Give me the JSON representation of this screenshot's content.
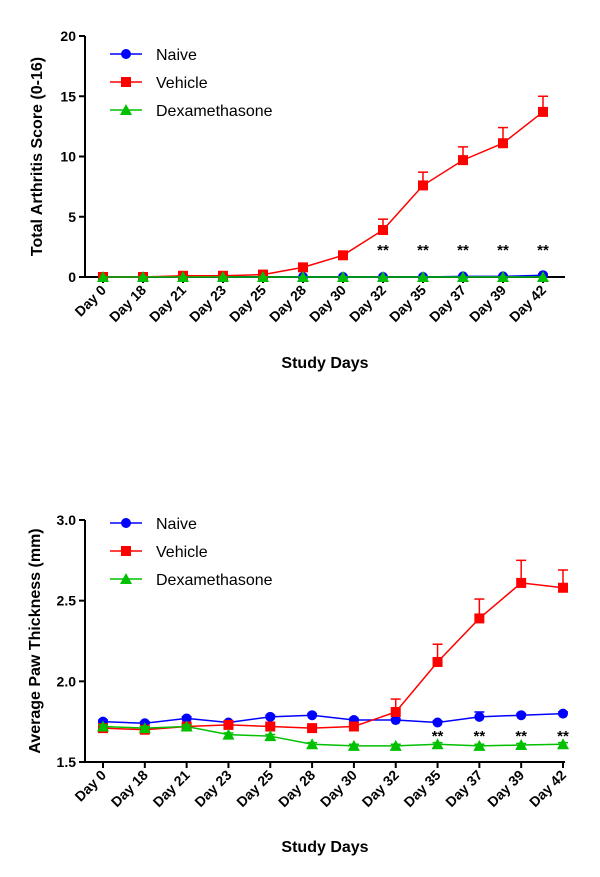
{
  "chart_data": [
    {
      "type": "line",
      "categories": [
        "Day 0",
        "Day 18",
        "Day 21",
        "Day 23",
        "Day 25",
        "Day 28",
        "Day 30",
        "Day 32",
        "Day 35",
        "Day 37",
        "Day 39",
        "Day 42"
      ],
      "xlabel": "Study Days",
      "ylabel": "Total Arthritis Score (0-16)",
      "ylim": [
        0,
        20
      ],
      "yticks": [
        "0",
        "5",
        "10",
        "15",
        "20"
      ],
      "legend_position": "top-left",
      "series": [
        {
          "name": "Naive",
          "color": "#0000ff",
          "marker": "circle",
          "values": [
            0,
            0,
            0,
            0,
            0,
            0,
            0,
            0,
            0,
            0.05,
            0.05,
            0.15
          ],
          "errors": [
            0,
            0,
            0,
            0,
            0,
            0,
            0,
            0,
            0,
            0.05,
            0.05,
            0.1
          ]
        },
        {
          "name": "Vehicle",
          "color": "#ff0000",
          "marker": "square",
          "values": [
            0,
            0,
            0.1,
            0.1,
            0.2,
            0.8,
            1.8,
            3.9,
            7.6,
            9.7,
            11.1,
            13.7
          ],
          "errors": [
            0,
            0,
            0.05,
            0.05,
            0.1,
            0.2,
            0.3,
            0.9,
            1.1,
            1.1,
            1.3,
            1.3
          ]
        },
        {
          "name": "Dexamethasone",
          "color": "#00c000",
          "marker": "triangle",
          "values": [
            0,
            0,
            0,
            0,
            0,
            0,
            0,
            0,
            0,
            0,
            0,
            0
          ],
          "errors": [
            0,
            0,
            0,
            0,
            0,
            0,
            0,
            0,
            0,
            0,
            0,
            0
          ]
        }
      ],
      "annotations": [
        {
          "category": "Day 32",
          "text": "**"
        },
        {
          "category": "Day 35",
          "text": "**"
        },
        {
          "category": "Day 37",
          "text": "**"
        },
        {
          "category": "Day 39",
          "text": "**"
        },
        {
          "category": "Day 42",
          "text": "**"
        }
      ]
    },
    {
      "type": "line",
      "categories": [
        "Day 0",
        "Day 18",
        "Day 21",
        "Day 23",
        "Day 25",
        "Day 28",
        "Day 30",
        "Day 32",
        "Day 35",
        "Day 37",
        "Day 39",
        "Day 42"
      ],
      "xlabel": "Study Days",
      "ylabel": "Average Paw Thickness (mm)",
      "ylim": [
        1.5,
        3.0
      ],
      "yticks": [
        "1.5",
        "2.0",
        "2.5",
        "3.0"
      ],
      "legend_position": "top-left",
      "series": [
        {
          "name": "Naive",
          "color": "#0000ff",
          "marker": "circle",
          "values": [
            1.75,
            1.74,
            1.77,
            1.745,
            1.78,
            1.79,
            1.76,
            1.76,
            1.745,
            1.78,
            1.79,
            1.8
          ],
          "errors": [
            0.01,
            0.01,
            0.01,
            0.01,
            0.01,
            0.01,
            0.01,
            0.01,
            0.01,
            0.03,
            0.01,
            0.01
          ]
        },
        {
          "name": "Vehicle",
          "color": "#ff0000",
          "marker": "square",
          "values": [
            1.71,
            1.7,
            1.72,
            1.73,
            1.72,
            1.71,
            1.72,
            1.81,
            2.12,
            2.39,
            2.61,
            2.58
          ],
          "errors": [
            0.01,
            0.01,
            0.01,
            0.01,
            0.01,
            0.01,
            0.01,
            0.08,
            0.11,
            0.12,
            0.14,
            0.11
          ]
        },
        {
          "name": "Dexamethasone",
          "color": "#00c000",
          "marker": "triangle",
          "values": [
            1.72,
            1.71,
            1.72,
            1.67,
            1.66,
            1.61,
            1.6,
            1.6,
            1.61,
            1.6,
            1.605,
            1.61
          ],
          "errors": [
            0.01,
            0.01,
            0.01,
            0.01,
            0.01,
            0.01,
            0.01,
            0.01,
            0.01,
            0.01,
            0.01,
            0.01
          ]
        }
      ],
      "annotations": [
        {
          "category": "Day 35",
          "text": "**"
        },
        {
          "category": "Day 37",
          "text": "**"
        },
        {
          "category": "Day 39",
          "text": "**"
        },
        {
          "category": "Day 42",
          "text": "**"
        }
      ]
    }
  ]
}
